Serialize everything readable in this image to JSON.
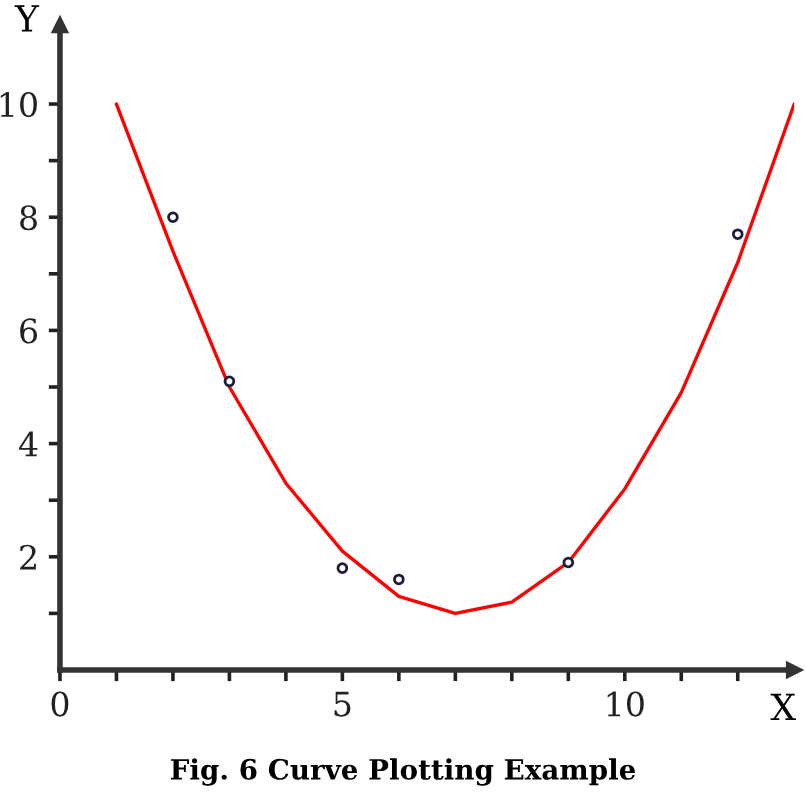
{
  "chart_data": {
    "type": "line",
    "title": "Fig. 6 Curve Plotting Example",
    "xlabel": "X",
    "ylabel": "Y",
    "xlim": [
      0,
      13
    ],
    "ylim": [
      0,
      11.4
    ],
    "xticks": [
      0,
      {
        "value": 1,
        "label": null
      },
      {
        "value": 2,
        "label": null
      },
      {
        "value": 3,
        "label": null
      },
      {
        "value": 4,
        "label": null
      },
      5,
      {
        "value": 6,
        "label": null
      },
      {
        "value": 7,
        "label": null
      },
      {
        "value": 8,
        "label": null
      },
      {
        "value": 9,
        "label": null
      },
      10,
      {
        "value": 11,
        "label": null
      },
      {
        "value": 12,
        "label": null
      }
    ],
    "yticks": [
      {
        "value": 1,
        "label": null
      },
      2,
      {
        "value": 3,
        "label": null
      },
      4,
      {
        "value": 5,
        "label": null
      },
      6,
      {
        "value": 7,
        "label": null
      },
      8,
      {
        "value": 9,
        "label": null
      },
      10
    ],
    "series": [
      {
        "type": "scatter",
        "color": "#1c1c3c",
        "marker": "circle",
        "x": [
          2,
          3,
          5,
          6,
          9,
          12
        ],
        "values": [
          8,
          5.1,
          1.8,
          1.6,
          1.9,
          7.7
        ]
      },
      {
        "color": "#ff0000",
        "marker": "none",
        "line_style": "solid",
        "x": [
          1,
          2,
          3,
          4,
          5,
          6,
          7,
          8,
          9,
          10,
          11,
          12,
          13
        ],
        "values": [
          10,
          7.4,
          5.0,
          3.3,
          2.1,
          1.3,
          1.0,
          1.2,
          1.9,
          3.2,
          4.9,
          7.2,
          10
        ]
      }
    ],
    "grid": false,
    "legend": false
  }
}
